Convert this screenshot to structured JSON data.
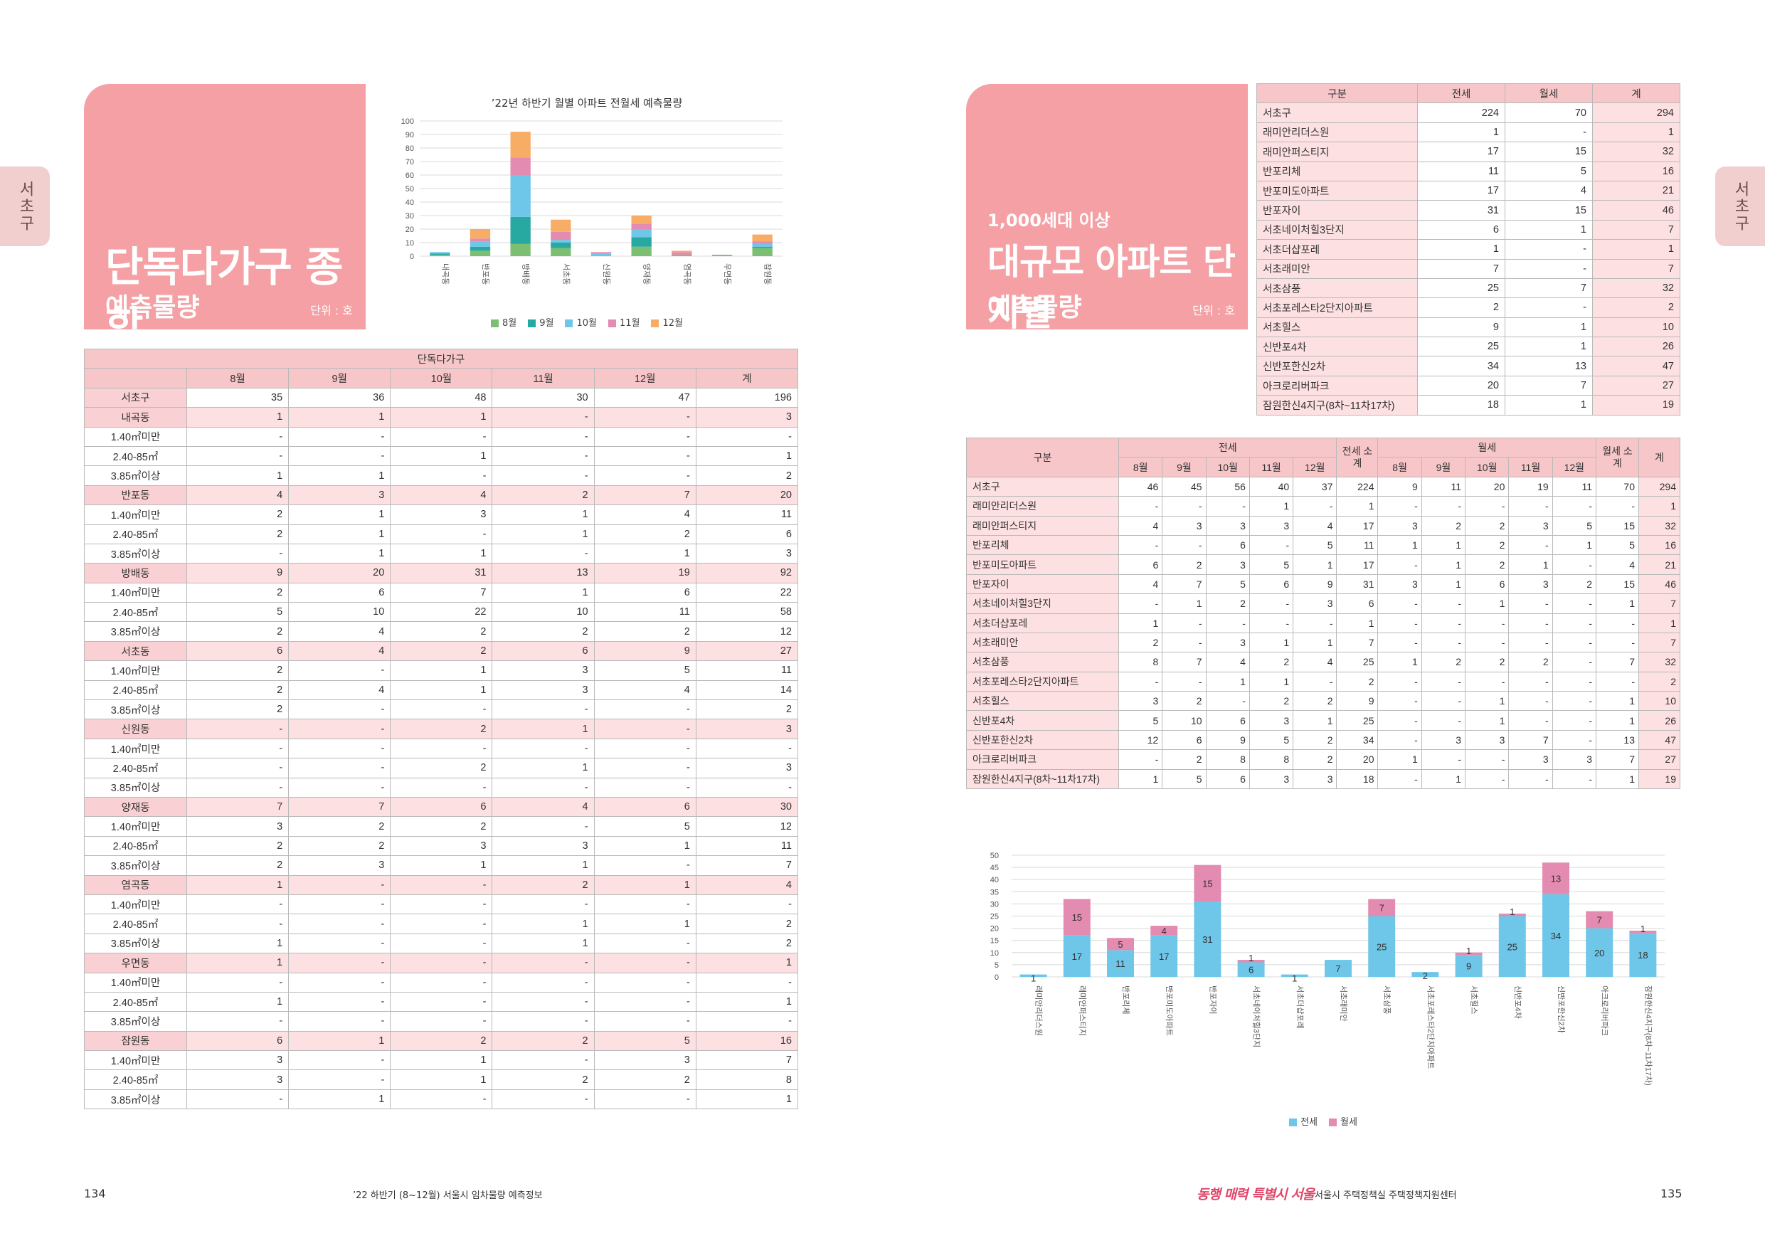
{
  "side_tab": "서초구",
  "left": {
    "hero": {
      "title": "단독다가구 종합",
      "subtitle": "예측물량",
      "unit": "단위 : 호"
    },
    "chart": {
      "title": "’22년 하반기 월별 아파트 전월세 예측물량",
      "series_colors": [
        "#7dbf72",
        "#27a9a2",
        "#6ec6e8",
        "#e38bb0",
        "#f7ad66"
      ]
    },
    "table": {
      "group_header": "단독다가구",
      "headers": [
        "8월",
        "9월",
        "10월",
        "11월",
        "12월",
        "계"
      ],
      "rows": [
        {
          "label": "서초구",
          "kind": "total",
          "v": [
            "35",
            "36",
            "48",
            "30",
            "47",
            "196"
          ]
        },
        {
          "label": "내곡동",
          "kind": "district",
          "v": [
            "1",
            "1",
            "1",
            "-",
            "-",
            "3"
          ]
        },
        {
          "label": "1.40㎡미만",
          "kind": "sub",
          "v": [
            "-",
            "-",
            "-",
            "-",
            "-",
            "-"
          ]
        },
        {
          "label": "2.40-85㎡",
          "kind": "sub",
          "v": [
            "-",
            "-",
            "1",
            "-",
            "-",
            "1"
          ]
        },
        {
          "label": "3.85㎡이상",
          "kind": "sub",
          "v": [
            "1",
            "1",
            "-",
            "-",
            "-",
            "2"
          ]
        },
        {
          "label": "반포동",
          "kind": "district",
          "v": [
            "4",
            "3",
            "4",
            "2",
            "7",
            "20"
          ]
        },
        {
          "label": "1.40㎡미만",
          "kind": "sub",
          "v": [
            "2",
            "1",
            "3",
            "1",
            "4",
            "11"
          ]
        },
        {
          "label": "2.40-85㎡",
          "kind": "sub",
          "v": [
            "2",
            "1",
            "-",
            "1",
            "2",
            "6"
          ]
        },
        {
          "label": "3.85㎡이상",
          "kind": "sub",
          "v": [
            "-",
            "1",
            "1",
            "-",
            "1",
            "3"
          ]
        },
        {
          "label": "방배동",
          "kind": "district",
          "v": [
            "9",
            "20",
            "31",
            "13",
            "19",
            "92"
          ]
        },
        {
          "label": "1.40㎡미만",
          "kind": "sub",
          "v": [
            "2",
            "6",
            "7",
            "1",
            "6",
            "22"
          ]
        },
        {
          "label": "2.40-85㎡",
          "kind": "sub",
          "v": [
            "5",
            "10",
            "22",
            "10",
            "11",
            "58"
          ]
        },
        {
          "label": "3.85㎡이상",
          "kind": "sub",
          "v": [
            "2",
            "4",
            "2",
            "2",
            "2",
            "12"
          ]
        },
        {
          "label": "서초동",
          "kind": "district",
          "v": [
            "6",
            "4",
            "2",
            "6",
            "9",
            "27"
          ]
        },
        {
          "label": "1.40㎡미만",
          "kind": "sub",
          "v": [
            "2",
            "-",
            "1",
            "3",
            "5",
            "11"
          ]
        },
        {
          "label": "2.40-85㎡",
          "kind": "sub",
          "v": [
            "2",
            "4",
            "1",
            "3",
            "4",
            "14"
          ]
        },
        {
          "label": "3.85㎡이상",
          "kind": "sub",
          "v": [
            "2",
            "-",
            "-",
            "-",
            "-",
            "2"
          ]
        },
        {
          "label": "신원동",
          "kind": "district",
          "v": [
            "-",
            "-",
            "2",
            "1",
            "-",
            "3"
          ]
        },
        {
          "label": "1.40㎡미만",
          "kind": "sub",
          "v": [
            "-",
            "-",
            "-",
            "-",
            "-",
            "-"
          ]
        },
        {
          "label": "2.40-85㎡",
          "kind": "sub",
          "v": [
            "-",
            "-",
            "2",
            "1",
            "-",
            "3"
          ]
        },
        {
          "label": "3.85㎡이상",
          "kind": "sub",
          "v": [
            "-",
            "-",
            "-",
            "-",
            "-",
            "-"
          ]
        },
        {
          "label": "양재동",
          "kind": "district",
          "v": [
            "7",
            "7",
            "6",
            "4",
            "6",
            "30"
          ]
        },
        {
          "label": "1.40㎡미만",
          "kind": "sub",
          "v": [
            "3",
            "2",
            "2",
            "-",
            "5",
            "12"
          ]
        },
        {
          "label": "2.40-85㎡",
          "kind": "sub",
          "v": [
            "2",
            "2",
            "3",
            "3",
            "1",
            "11"
          ]
        },
        {
          "label": "3.85㎡이상",
          "kind": "sub",
          "v": [
            "2",
            "3",
            "1",
            "1",
            "-",
            "7"
          ]
        },
        {
          "label": "염곡동",
          "kind": "district",
          "v": [
            "1",
            "-",
            "-",
            "2",
            "1",
            "4"
          ]
        },
        {
          "label": "1.40㎡미만",
          "kind": "sub",
          "v": [
            "-",
            "-",
            "-",
            "-",
            "-",
            "-"
          ]
        },
        {
          "label": "2.40-85㎡",
          "kind": "sub",
          "v": [
            "-",
            "-",
            "-",
            "1",
            "1",
            "2"
          ]
        },
        {
          "label": "3.85㎡이상",
          "kind": "sub",
          "v": [
            "1",
            "-",
            "-",
            "1",
            "-",
            "2"
          ]
        },
        {
          "label": "우면동",
          "kind": "district",
          "v": [
            "1",
            "-",
            "-",
            "-",
            "-",
            "1"
          ]
        },
        {
          "label": "1.40㎡미만",
          "kind": "sub",
          "v": [
            "-",
            "-",
            "-",
            "-",
            "-",
            "-"
          ]
        },
        {
          "label": "2.40-85㎡",
          "kind": "sub",
          "v": [
            "1",
            "-",
            "-",
            "-",
            "-",
            "1"
          ]
        },
        {
          "label": "3.85㎡이상",
          "kind": "sub",
          "v": [
            "-",
            "-",
            "-",
            "-",
            "-",
            "-"
          ]
        },
        {
          "label": "잠원동",
          "kind": "district",
          "v": [
            "6",
            "1",
            "2",
            "2",
            "5",
            "16"
          ]
        },
        {
          "label": "1.40㎡미만",
          "kind": "sub",
          "v": [
            "3",
            "-",
            "1",
            "-",
            "3",
            "7"
          ]
        },
        {
          "label": "2.40-85㎡",
          "kind": "sub",
          "v": [
            "3",
            "-",
            "1",
            "2",
            "2",
            "8"
          ]
        },
        {
          "label": "3.85㎡이상",
          "kind": "sub",
          "v": [
            "-",
            "1",
            "-",
            "-",
            "-",
            "1"
          ]
        }
      ]
    },
    "footer": {
      "page": "134",
      "text": "’22 하반기 (8~12월) 서울시 임차물량 예측정보"
    }
  },
  "right": {
    "hero": {
      "small": "1,000세대 이상",
      "title": "대규모 아파트 단지별",
      "subtitle": "예측물량",
      "unit": "단위 : 호"
    },
    "summary": {
      "headers": [
        "구분",
        "전세",
        "월세",
        "계"
      ],
      "rows": [
        [
          "서초구",
          "224",
          "70",
          "294"
        ],
        [
          "래미안리더스원",
          "1",
          "-",
          "1"
        ],
        [
          "래미안퍼스티지",
          "17",
          "15",
          "32"
        ],
        [
          "반포리체",
          "11",
          "5",
          "16"
        ],
        [
          "반포미도아파트",
          "17",
          "4",
          "21"
        ],
        [
          "반포자이",
          "31",
          "15",
          "46"
        ],
        [
          "서초네이처힐3단지",
          "6",
          "1",
          "7"
        ],
        [
          "서초더샵포레",
          "1",
          "-",
          "1"
        ],
        [
          "서초래미안",
          "7",
          "-",
          "7"
        ],
        [
          "서초삼풍",
          "25",
          "7",
          "32"
        ],
        [
          "서초포레스타2단지아파트",
          "2",
          "-",
          "2"
        ],
        [
          "서초힐스",
          "9",
          "1",
          "10"
        ],
        [
          "신반포4차",
          "25",
          "1",
          "26"
        ],
        [
          "신반포한신2차",
          "34",
          "13",
          "47"
        ],
        [
          "아크로리버파크",
          "20",
          "7",
          "27"
        ],
        [
          "잠원한신4지구(8차~11차17차)",
          "18",
          "1",
          "19"
        ]
      ]
    },
    "detail": {
      "h_gubun": "구분",
      "h_jeonse": "전세",
      "h_jeonse_sub": "전세 소계",
      "h_wolse": "월세",
      "h_wolse_sub": "월세 소계",
      "h_total": "계",
      "months": [
        "8월",
        "9월",
        "10월",
        "11월",
        "12월"
      ],
      "rows": [
        {
          "label": "서초구",
          "v": [
            "46",
            "45",
            "56",
            "40",
            "37",
            "224",
            "9",
            "11",
            "20",
            "19",
            "11",
            "70",
            "294"
          ]
        },
        {
          "label": "래미안리더스원",
          "v": [
            "-",
            "-",
            "-",
            "1",
            "-",
            "1",
            "-",
            "-",
            "-",
            "-",
            "-",
            "-",
            "1"
          ]
        },
        {
          "label": "래미안퍼스티지",
          "v": [
            "4",
            "3",
            "3",
            "3",
            "4",
            "17",
            "3",
            "2",
            "2",
            "3",
            "5",
            "15",
            "32"
          ]
        },
        {
          "label": "반포리체",
          "v": [
            "-",
            "-",
            "6",
            "-",
            "5",
            "11",
            "1",
            "1",
            "2",
            "-",
            "1",
            "5",
            "16"
          ]
        },
        {
          "label": "반포미도아파트",
          "v": [
            "6",
            "2",
            "3",
            "5",
            "1",
            "17",
            "-",
            "1",
            "2",
            "1",
            "-",
            "4",
            "21"
          ]
        },
        {
          "label": "반포자이",
          "v": [
            "4",
            "7",
            "5",
            "6",
            "9",
            "31",
            "3",
            "1",
            "6",
            "3",
            "2",
            "15",
            "46"
          ]
        },
        {
          "label": "서초네이처힐3단지",
          "v": [
            "-",
            "1",
            "2",
            "-",
            "3",
            "6",
            "-",
            "-",
            "1",
            "-",
            "-",
            "1",
            "7"
          ]
        },
        {
          "label": "서초더샵포레",
          "v": [
            "1",
            "-",
            "-",
            "-",
            "-",
            "1",
            "-",
            "-",
            "-",
            "-",
            "-",
            "-",
            "1"
          ]
        },
        {
          "label": "서초래미안",
          "v": [
            "2",
            "-",
            "3",
            "1",
            "1",
            "7",
            "-",
            "-",
            "-",
            "-",
            "-",
            "-",
            "7"
          ]
        },
        {
          "label": "서초삼풍",
          "v": [
            "8",
            "7",
            "4",
            "2",
            "4",
            "25",
            "1",
            "2",
            "2",
            "2",
            "-",
            "7",
            "32"
          ]
        },
        {
          "label": "서초포레스타2단지아파트",
          "v": [
            "-",
            "-",
            "1",
            "1",
            "-",
            "2",
            "-",
            "-",
            "-",
            "-",
            "-",
            "-",
            "2"
          ]
        },
        {
          "label": "서초힐스",
          "v": [
            "3",
            "2",
            "-",
            "2",
            "2",
            "9",
            "-",
            "-",
            "1",
            "-",
            "-",
            "1",
            "10"
          ]
        },
        {
          "label": "신반포4차",
          "v": [
            "5",
            "10",
            "6",
            "3",
            "1",
            "25",
            "-",
            "-",
            "1",
            "-",
            "-",
            "1",
            "26"
          ]
        },
        {
          "label": "신반포한신2차",
          "v": [
            "12",
            "6",
            "9",
            "5",
            "2",
            "34",
            "-",
            "3",
            "3",
            "7",
            "-",
            "13",
            "47"
          ]
        },
        {
          "label": "아크로리버파크",
          "v": [
            "-",
            "2",
            "8",
            "8",
            "2",
            "20",
            "1",
            "-",
            "-",
            "3",
            "3",
            "7",
            "27"
          ]
        },
        {
          "label": "잠원한신4지구(8차~11차17차)",
          "v": [
            "1",
            "5",
            "6",
            "3",
            "3",
            "18",
            "-",
            "1",
            "-",
            "-",
            "-",
            "1",
            "19"
          ]
        }
      ]
    },
    "chart": {
      "series_colors": [
        "#6ec6e8",
        "#e38bb0"
      ]
    },
    "footer": {
      "logo": "동행 매력 특별시 서울",
      "org": "서울시 주택정책실 주택정책지원센터",
      "page": "135"
    }
  },
  "chart_data": [
    {
      "type": "bar",
      "stacked": true,
      "title": "’22년 하반기 월별 아파트 전월세 예측물량",
      "categories": [
        "내곡동",
        "반포동",
        "방배동",
        "서초동",
        "신원동",
        "양재동",
        "염곡동",
        "우면동",
        "잠원동"
      ],
      "series": [
        {
          "name": "8월",
          "values": [
            1,
            4,
            9,
            6,
            0,
            7,
            1,
            1,
            6
          ]
        },
        {
          "name": "9월",
          "values": [
            1,
            3,
            20,
            4,
            0,
            7,
            0,
            0,
            1
          ]
        },
        {
          "name": "10월",
          "values": [
            1,
            4,
            31,
            2,
            2,
            6,
            0,
            0,
            2
          ]
        },
        {
          "name": "11월",
          "values": [
            0,
            2,
            13,
            6,
            1,
            4,
            2,
            0,
            2
          ]
        },
        {
          "name": "12월",
          "values": [
            0,
            7,
            19,
            9,
            0,
            6,
            1,
            0,
            5
          ]
        }
      ],
      "ylim": [
        0,
        100
      ],
      "yticks": [
        0,
        10,
        20,
        30,
        40,
        50,
        60,
        70,
        80,
        90,
        100
      ],
      "grid": true,
      "legend": "bottom"
    },
    {
      "type": "bar",
      "stacked": true,
      "categories": [
        "래미안리더스원",
        "래미안퍼스티지",
        "반포리체",
        "반포미도아파트",
        "반포자이",
        "서초네이처힐3단지",
        "서초더샵포레",
        "서초래미안",
        "서초삼풍",
        "서초포레스타2단지아파트",
        "서초힐스",
        "신반포4차",
        "신반포한신2차",
        "아크로리버파크",
        "잠원한신4지구(8차~11차17차)"
      ],
      "series": [
        {
          "name": "전세",
          "values": [
            1,
            17,
            11,
            17,
            31,
            6,
            1,
            7,
            25,
            2,
            9,
            25,
            34,
            20,
            18
          ]
        },
        {
          "name": "월세",
          "values": [
            0,
            15,
            5,
            4,
            15,
            1,
            0,
            0,
            7,
            0,
            1,
            1,
            13,
            7,
            1
          ]
        }
      ],
      "data_labels": {
        "전세": [
          "1",
          "17",
          "11",
          "17",
          "31",
          "6",
          "1",
          "7",
          "25",
          "2",
          "9",
          "25",
          "34",
          "20",
          "18"
        ],
        "월세": [
          "",
          "15",
          "5",
          "4",
          "15",
          "1",
          "",
          "",
          "7",
          "",
          "1",
          "1",
          "13",
          "7",
          "1"
        ]
      },
      "ylim": [
        0,
        50
      ],
      "yticks": [
        0,
        5,
        10,
        15,
        20,
        25,
        30,
        35,
        40,
        45,
        50
      ],
      "grid": true,
      "legend": "bottom"
    }
  ]
}
